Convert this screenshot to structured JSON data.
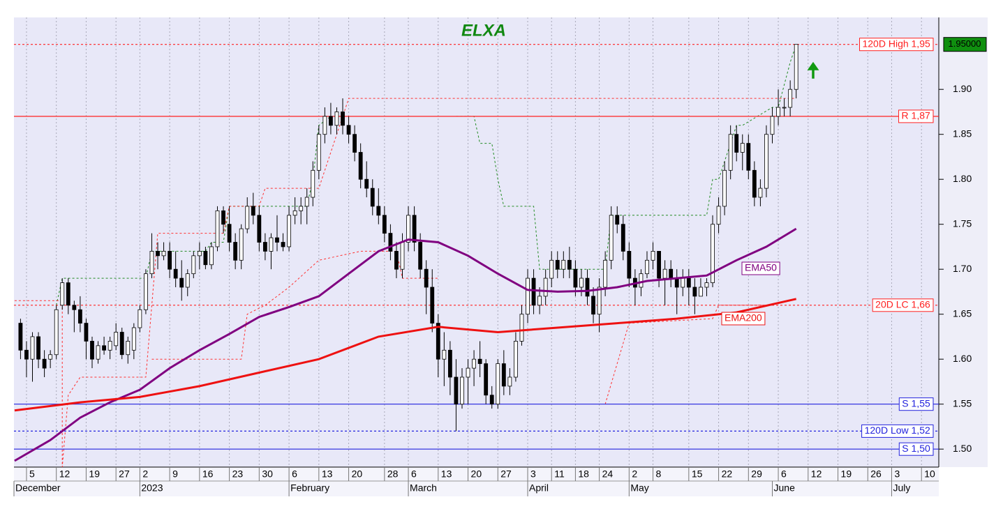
{
  "chart_data": {
    "type": "candlestick",
    "title": "ELXA",
    "x": [
      0,
      1,
      2,
      3,
      4,
      5,
      6,
      7,
      8,
      9,
      10,
      11,
      12,
      13,
      14,
      15,
      16,
      17,
      18,
      19,
      20,
      21,
      22,
      23,
      24,
      25,
      26,
      27,
      28,
      29,
      30,
      31,
      32,
      33,
      34,
      35,
      36,
      37,
      38,
      39,
      40,
      41,
      42,
      43,
      44,
      45,
      46,
      47,
      48,
      49,
      50,
      51,
      52,
      53,
      54,
      55,
      56,
      57,
      58,
      59,
      60,
      61,
      62,
      63,
      64,
      65,
      66,
      67,
      68,
      69,
      70,
      71,
      72,
      73,
      74,
      75,
      76,
      77,
      78,
      79,
      80,
      81,
      82,
      83,
      84,
      85,
      86,
      87,
      88,
      89,
      90,
      91,
      92,
      93,
      94,
      95,
      96,
      97,
      98,
      99,
      100,
      101,
      102,
      103,
      104,
      105,
      106,
      107,
      108,
      109,
      110,
      111,
      112,
      113,
      114,
      115,
      116,
      117,
      118,
      119,
      120,
      121,
      122,
      123,
      124,
      125,
      126,
      127,
      128,
      129,
      130
    ],
    "open": [
      1.64,
      1.61,
      1.6,
      1.625,
      1.6,
      1.6,
      1.605,
      1.66,
      1.685,
      1.66,
      1.655,
      1.64,
      1.62,
      1.6,
      1.615,
      1.61,
      1.615,
      1.63,
      1.605,
      1.61,
      1.635,
      1.655,
      1.695,
      1.72,
      1.715,
      1.72,
      1.7,
      1.69,
      1.68,
      1.695,
      1.715,
      1.72,
      1.705,
      1.725,
      1.765,
      1.75,
      1.73,
      1.71,
      1.745,
      1.77,
      1.76,
      1.73,
      1.72,
      1.735,
      1.73,
      1.725,
      1.76,
      1.765,
      1.77,
      1.78,
      1.81,
      1.85,
      1.87,
      1.86,
      1.875,
      1.86,
      1.85,
      1.83,
      1.8,
      1.79,
      1.77,
      1.76,
      1.74,
      1.72,
      1.7,
      1.73,
      1.76,
      1.73,
      1.7,
      1.68,
      1.64,
      1.6,
      1.61,
      1.58,
      1.55,
      1.58,
      1.59,
      1.6,
      1.595,
      1.56,
      1.55,
      1.595,
      1.57,
      1.58,
      1.62,
      1.65,
      1.69,
      1.66,
      1.67,
      1.69,
      1.71,
      1.7,
      1.71,
      1.7,
      1.68,
      1.69,
      1.67,
      1.65,
      1.68,
      1.71,
      1.76,
      1.75,
      1.72,
      1.69,
      1.68,
      1.695,
      1.71,
      1.72,
      1.69,
      1.7,
      1.69,
      1.68,
      1.69,
      1.68,
      1.67,
      1.68,
      1.685,
      1.75,
      1.77,
      1.81,
      1.85,
      1.83,
      1.84,
      1.81,
      1.78,
      1.79,
      1.85,
      1.87,
      1.88,
      1.88,
      1.9
    ],
    "high": [
      1.645,
      1.62,
      1.63,
      1.63,
      1.61,
      1.61,
      1.66,
      1.69,
      1.69,
      1.665,
      1.67,
      1.645,
      1.625,
      1.62,
      1.625,
      1.625,
      1.64,
      1.635,
      1.625,
      1.64,
      1.66,
      1.7,
      1.74,
      1.73,
      1.73,
      1.73,
      1.72,
      1.71,
      1.7,
      1.72,
      1.73,
      1.725,
      1.73,
      1.77,
      1.77,
      1.77,
      1.74,
      1.75,
      1.78,
      1.785,
      1.77,
      1.74,
      1.74,
      1.76,
      1.74,
      1.77,
      1.78,
      1.78,
      1.79,
      1.82,
      1.86,
      1.88,
      1.885,
      1.88,
      1.89,
      1.87,
      1.86,
      1.84,
      1.82,
      1.8,
      1.79,
      1.77,
      1.75,
      1.73,
      1.74,
      1.77,
      1.77,
      1.74,
      1.71,
      1.7,
      1.65,
      1.63,
      1.62,
      1.6,
      1.59,
      1.6,
      1.61,
      1.62,
      1.6,
      1.57,
      1.6,
      1.61,
      1.59,
      1.63,
      1.66,
      1.7,
      1.7,
      1.68,
      1.7,
      1.72,
      1.72,
      1.72,
      1.725,
      1.71,
      1.7,
      1.7,
      1.68,
      1.69,
      1.72,
      1.77,
      1.77,
      1.76,
      1.73,
      1.7,
      1.7,
      1.72,
      1.73,
      1.72,
      1.71,
      1.71,
      1.7,
      1.7,
      1.7,
      1.69,
      1.69,
      1.69,
      1.76,
      1.78,
      1.82,
      1.86,
      1.86,
      1.85,
      1.85,
      1.82,
      1.8,
      1.86,
      1.88,
      1.9,
      1.89,
      1.91,
      1.95
    ],
    "low": [
      1.6,
      1.58,
      1.575,
      1.59,
      1.58,
      1.59,
      1.6,
      1.655,
      1.65,
      1.63,
      1.63,
      1.6,
      1.59,
      1.595,
      1.605,
      1.6,
      1.61,
      1.6,
      1.595,
      1.6,
      1.63,
      1.65,
      1.69,
      1.7,
      1.71,
      1.69,
      1.68,
      1.665,
      1.67,
      1.69,
      1.7,
      1.7,
      1.7,
      1.72,
      1.74,
      1.72,
      1.7,
      1.7,
      1.74,
      1.75,
      1.72,
      1.71,
      1.7,
      1.72,
      1.72,
      1.72,
      1.75,
      1.75,
      1.75,
      1.77,
      1.8,
      1.84,
      1.85,
      1.85,
      1.85,
      1.84,
      1.82,
      1.79,
      1.78,
      1.76,
      1.75,
      1.73,
      1.71,
      1.69,
      1.69,
      1.72,
      1.72,
      1.69,
      1.65,
      1.63,
      1.58,
      1.57,
      1.56,
      1.52,
      1.545,
      1.55,
      1.57,
      1.58,
      1.55,
      1.545,
      1.545,
      1.56,
      1.56,
      1.575,
      1.615,
      1.64,
      1.65,
      1.65,
      1.66,
      1.68,
      1.69,
      1.69,
      1.69,
      1.67,
      1.67,
      1.66,
      1.64,
      1.63,
      1.67,
      1.7,
      1.74,
      1.71,
      1.68,
      1.66,
      1.67,
      1.69,
      1.7,
      1.68,
      1.66,
      1.68,
      1.65,
      1.67,
      1.66,
      1.65,
      1.67,
      1.67,
      1.68,
      1.74,
      1.76,
      1.8,
      1.82,
      1.81,
      1.8,
      1.77,
      1.77,
      1.78,
      1.84,
      1.86,
      1.87,
      1.87,
      1.89
    ],
    "close": [
      1.61,
      1.6,
      1.625,
      1.6,
      1.59,
      1.605,
      1.655,
      1.685,
      1.66,
      1.655,
      1.64,
      1.62,
      1.6,
      1.615,
      1.61,
      1.62,
      1.63,
      1.605,
      1.62,
      1.635,
      1.655,
      1.695,
      1.72,
      1.715,
      1.72,
      1.7,
      1.69,
      1.68,
      1.695,
      1.715,
      1.72,
      1.705,
      1.725,
      1.765,
      1.75,
      1.73,
      1.71,
      1.745,
      1.77,
      1.76,
      1.73,
      1.72,
      1.735,
      1.73,
      1.725,
      1.76,
      1.765,
      1.77,
      1.78,
      1.81,
      1.85,
      1.87,
      1.86,
      1.875,
      1.86,
      1.85,
      1.83,
      1.8,
      1.79,
      1.77,
      1.76,
      1.74,
      1.72,
      1.7,
      1.73,
      1.76,
      1.73,
      1.7,
      1.68,
      1.64,
      1.6,
      1.61,
      1.58,
      1.55,
      1.58,
      1.59,
      1.6,
      1.595,
      1.56,
      1.55,
      1.595,
      1.57,
      1.58,
      1.62,
      1.65,
      1.69,
      1.66,
      1.67,
      1.69,
      1.71,
      1.7,
      1.71,
      1.7,
      1.68,
      1.69,
      1.67,
      1.65,
      1.68,
      1.71,
      1.76,
      1.75,
      1.72,
      1.69,
      1.68,
      1.695,
      1.71,
      1.72,
      1.69,
      1.7,
      1.69,
      1.68,
      1.69,
      1.68,
      1.67,
      1.68,
      1.685,
      1.75,
      1.77,
      1.81,
      1.85,
      1.83,
      1.84,
      1.81,
      1.78,
      1.79,
      1.85,
      1.87,
      1.88,
      1.88,
      1.9,
      1.95
    ],
    "up_color": "#ffffff",
    "down_color": "#000000",
    "series": [
      {
        "name": "EMA50",
        "color": "#800080",
        "x": [
          -1,
          5,
          10,
          15,
          20,
          25,
          30,
          35,
          40,
          45,
          50,
          55,
          60,
          65,
          70,
          75,
          80,
          85,
          90,
          95,
          100,
          105,
          110,
          115,
          120,
          125,
          130
        ],
        "values": [
          1.487,
          1.51,
          1.535,
          1.552,
          1.566,
          1.59,
          1.61,
          1.628,
          1.647,
          1.658,
          1.67,
          1.695,
          1.72,
          1.733,
          1.73,
          1.715,
          1.695,
          1.677,
          1.675,
          1.676,
          1.68,
          1.687,
          1.69,
          1.693,
          1.71,
          1.725,
          1.745
        ]
      },
      {
        "name": "EMA200",
        "color": "#ee1111",
        "x": [
          -1,
          10,
          20,
          30,
          40,
          50,
          60,
          70,
          80,
          90,
          100,
          110,
          120,
          130
        ],
        "values": [
          1.543,
          1.552,
          1.558,
          1.57,
          1.585,
          1.6,
          1.625,
          1.636,
          1.63,
          1.635,
          1.64,
          1.645,
          1.652,
          1.667
        ]
      }
    ],
    "stops": [
      {
        "color": "#228b22",
        "x": [
          6,
          7,
          21,
          22,
          31,
          32,
          34,
          35,
          48,
          49,
          50,
          52,
          60,
          73,
          76,
          77,
          79,
          80,
          81,
          86,
          87,
          98,
          99,
          115,
          116,
          117,
          120,
          121,
          126,
          127,
          129,
          130
        ],
        "values": [
          1.66,
          1.69,
          1.69,
          1.72,
          1.72,
          1.73,
          1.73,
          1.77,
          1.77,
          1.8,
          1.86,
          1.87,
          null,
          1.87,
          1.87,
          1.84,
          1.84,
          1.8,
          1.77,
          1.77,
          1.7,
          1.7,
          1.76,
          1.76,
          1.8,
          1.8,
          1.86,
          1.86,
          1.88,
          1.88,
          1.93,
          1.95
        ]
      },
      {
        "color": "#ff3030",
        "x": [
          -1,
          7,
          7,
          8,
          10,
          21,
          22,
          23,
          34,
          35,
          40,
          41,
          50,
          55,
          130
        ],
        "values": [
          1.665,
          1.665,
          1.48,
          1.56,
          1.58,
          1.58,
          1.66,
          1.74,
          1.74,
          1.77,
          1.77,
          1.79,
          1.79,
          1.89,
          1.89
        ]
      },
      {
        "color": "#ff3030",
        "x": [
          22,
          37,
          38,
          41,
          45,
          50,
          57,
          63,
          64,
          70,
          97,
          98,
          102,
          116,
          117,
          126
        ],
        "values": [
          1.6,
          1.6,
          1.65,
          1.66,
          1.68,
          1.71,
          1.72,
          1.72,
          1.69,
          1.69,
          null,
          1.55,
          1.64,
          1.645,
          1.66,
          1.66
        ]
      }
    ],
    "levels": [
      {
        "value": 1.95,
        "label": "120D High 1,95",
        "color": "#ff2020",
        "style": "dotted"
      },
      {
        "value": 1.87,
        "label": "R 1,87",
        "color": "#ff2020",
        "style": "solid"
      },
      {
        "value": 1.66,
        "label": "20D LC 1,66",
        "color": "#ff2020",
        "style": "dotted"
      },
      {
        "value": 1.55,
        "label": "S 1,55",
        "color": "#2222dd",
        "style": "solid"
      },
      {
        "value": 1.52,
        "label": "120D Low 1,52",
        "color": "#2222dd",
        "style": "dotted"
      },
      {
        "value": 1.5,
        "label": "S 1,50",
        "color": "#2222dd",
        "style": "solid"
      }
    ],
    "last_price": {
      "value": 1.95,
      "label": "1.95000"
    },
    "xlim": [
      -1.1,
      153.9
    ],
    "ylim": [
      1.48,
      1.98
    ],
    "yticks": [
      {
        "value": 1.5,
        "label": "1.50"
      },
      {
        "value": 1.55,
        "label": "1.55"
      },
      {
        "value": 1.6,
        "label": "1.60"
      },
      {
        "value": 1.65,
        "label": "1.65"
      },
      {
        "value": 1.7,
        "label": "1.70"
      },
      {
        "value": 1.75,
        "label": "1.75"
      },
      {
        "value": 1.8,
        "label": "1.80"
      },
      {
        "value": 1.85,
        "label": "1.85"
      },
      {
        "value": 1.9,
        "label": "1.90"
      }
    ],
    "xticks": [
      {
        "value": 1,
        "label": "5"
      },
      {
        "value": 6,
        "label": "12"
      },
      {
        "value": 11,
        "label": "19"
      },
      {
        "value": 16,
        "label": "27"
      },
      {
        "value": 20,
        "label": "2"
      },
      {
        "value": 25,
        "label": "9"
      },
      {
        "value": 30,
        "label": "16"
      },
      {
        "value": 35,
        "label": "23"
      },
      {
        "value": 40,
        "label": "30"
      },
      {
        "value": 45,
        "label": "6"
      },
      {
        "value": 50,
        "label": "13"
      },
      {
        "value": 55,
        "label": "20"
      },
      {
        "value": 61,
        "label": "28"
      },
      {
        "value": 65,
        "label": "6"
      },
      {
        "value": 70,
        "label": "13"
      },
      {
        "value": 75,
        "label": "20"
      },
      {
        "value": 80,
        "label": "27"
      },
      {
        "value": 85,
        "label": "3"
      },
      {
        "value": 89,
        "label": "11"
      },
      {
        "value": 93,
        "label": "18"
      },
      {
        "value": 97,
        "label": "24"
      },
      {
        "value": 102,
        "label": "2"
      },
      {
        "value": 106,
        "label": "8"
      },
      {
        "value": 112,
        "label": "15"
      },
      {
        "value": 117,
        "label": "22"
      },
      {
        "value": 122,
        "label": "29"
      },
      {
        "value": 127,
        "label": "6"
      },
      {
        "value": 132,
        "label": "12"
      },
      {
        "value": 137,
        "label": "19"
      },
      {
        "value": 142,
        "label": "26"
      },
      {
        "value": 146,
        "label": "3"
      },
      {
        "value": 151,
        "label": "10"
      }
    ],
    "month_ticks": [
      {
        "value": -1.1,
        "label": "December"
      },
      {
        "value": 20,
        "label": "2023"
      },
      {
        "value": 45,
        "label": "February"
      },
      {
        "value": 65,
        "label": "March"
      },
      {
        "value": 85,
        "label": "April"
      },
      {
        "value": 102,
        "label": "May"
      },
      {
        "value": 126,
        "label": "June"
      },
      {
        "value": 146,
        "label": "July"
      }
    ],
    "grid": true
  }
}
